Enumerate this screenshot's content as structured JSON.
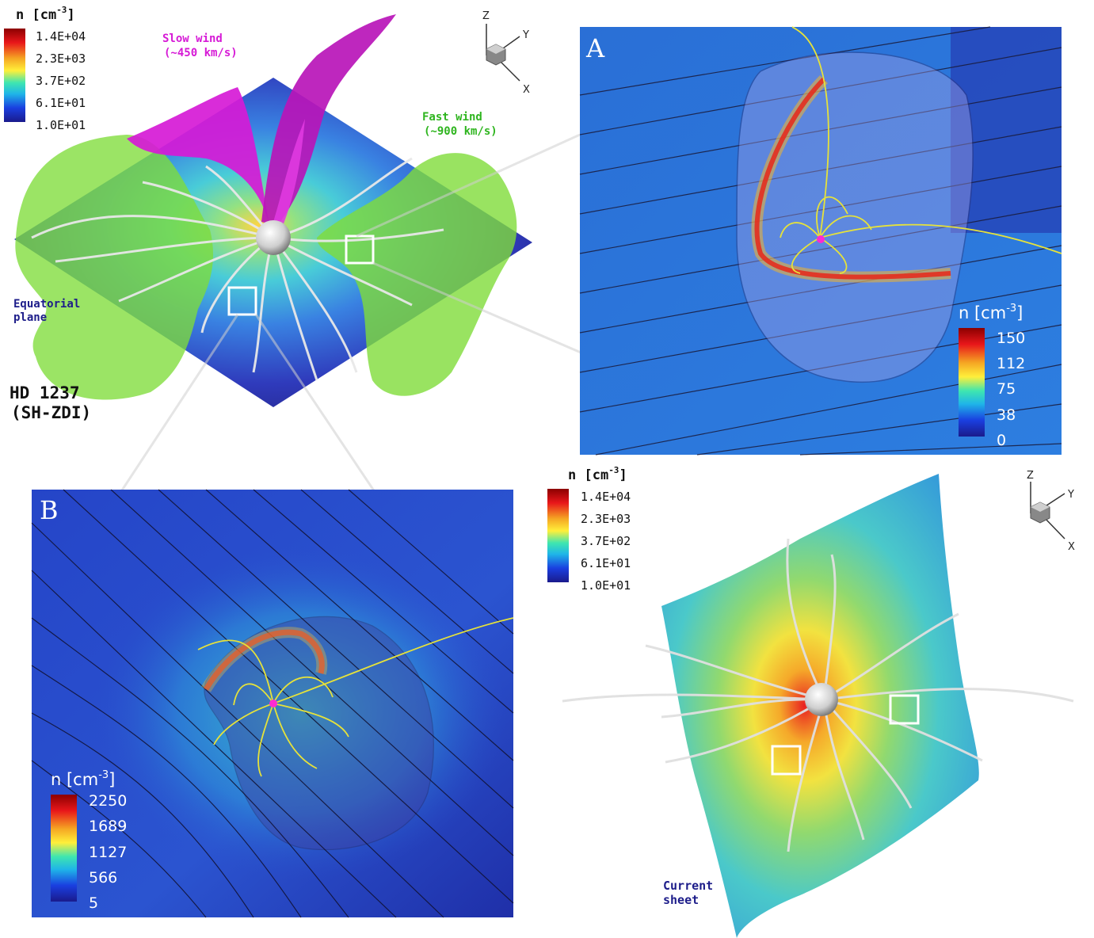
{
  "colorbars": {
    "main": {
      "title": "n [cm",
      "exp": "-3",
      "title_end": "]",
      "ticks": [
        "1.4E+04",
        "2.3E+03",
        "3.7E+02",
        "6.1E+01",
        "1.0E+01"
      ]
    },
    "panel_a": {
      "title": "n [cm",
      "exp": "-3",
      "title_end": "]",
      "ticks": [
        "150",
        "112",
        "75",
        "38",
        "0"
      ]
    },
    "panel_b": {
      "title": "n [cm",
      "exp": "-3",
      "title_end": "]",
      "ticks": [
        "2250",
        "1689",
        "1127",
        "566",
        "5"
      ]
    },
    "lower": {
      "title": "n [cm",
      "exp": "-3",
      "title_end": "]",
      "ticks": [
        "1.4E+04",
        "2.3E+03",
        "3.7E+02",
        "6.1E+01",
        "1.0E+01"
      ]
    }
  },
  "labels": {
    "slow_wind_1": "Slow wind",
    "slow_wind_2": "(~450 km/s)",
    "fast_wind_1": "Fast wind",
    "fast_wind_2": "(~900 km/s)",
    "equatorial_1": "Equatorial",
    "equatorial_2": "plane",
    "star_name_1": "HD 1237",
    "star_name_2": "(SH-ZDI)",
    "current_sheet_1": "Current",
    "current_sheet_2": "sheet",
    "panel_a": "A",
    "panel_b": "B"
  },
  "axes": {
    "z": "Z",
    "y": "Y",
    "x": "X"
  },
  "colors": {
    "slow_wind": "#d61ad6",
    "fast_wind": "#2fb51f",
    "equatorial": "#1d1d8a",
    "current_sheet": "#1d1d8a"
  }
}
